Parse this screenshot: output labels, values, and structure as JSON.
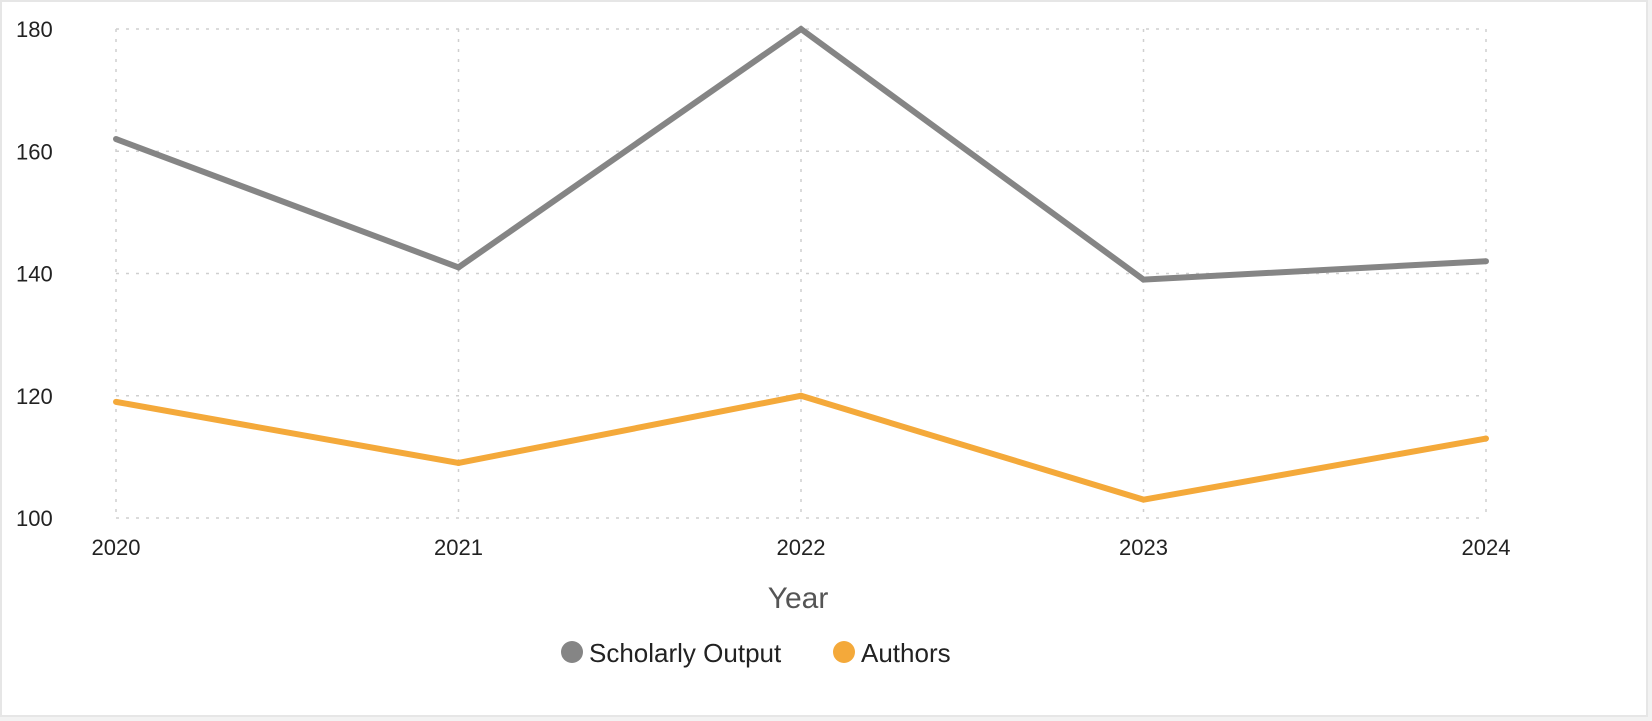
{
  "chart_data": {
    "type": "line",
    "xlabel": "Year",
    "ylabel": "",
    "categories": [
      "2020",
      "2021",
      "2022",
      "2023",
      "2024"
    ],
    "ylim": [
      100,
      180
    ],
    "yticks": [
      100,
      120,
      140,
      160,
      180
    ],
    "grid": true,
    "legend_position": "bottom",
    "series": [
      {
        "name": "Scholarly Output",
        "color": "#858585",
        "values": [
          162,
          141,
          180,
          139,
          142
        ]
      },
      {
        "name": "Authors",
        "color": "#f4a93a",
        "values": [
          119,
          109,
          120,
          103,
          113
        ]
      }
    ]
  }
}
